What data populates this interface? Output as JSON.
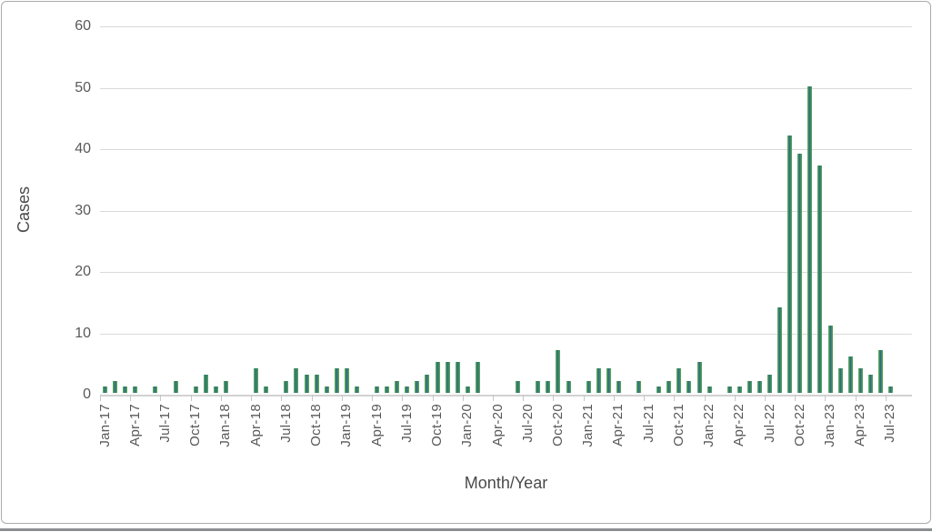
{
  "chart_data": {
    "type": "bar",
    "title": "",
    "xlabel": "Month/Year",
    "ylabel": "Cases",
    "ylim": [
      0,
      60
    ],
    "y_ticks": [
      0,
      10,
      20,
      30,
      40,
      50,
      60
    ],
    "grid": true,
    "x_tick_labels": [
      "Jan-17",
      "Apr-17",
      "Jul-17",
      "Oct-17",
      "Jan-18",
      "Apr-18",
      "Jul-18",
      "Oct-18",
      "Jan-19",
      "Apr-19",
      "Jul-19",
      "Oct-19",
      "Jan-20",
      "Apr-20",
      "Jul-20",
      "Oct-20",
      "Jan-21",
      "Apr-21",
      "Jul-21",
      "Oct-21",
      "Jan-22",
      "Apr-22",
      "Jul-22",
      "Oct-22",
      "Jan-23",
      "Apr-23",
      "Jul-23"
    ],
    "label_interval_months": 3,
    "months": [
      "Jan-17",
      "Feb-17",
      "Mar-17",
      "Apr-17",
      "May-17",
      "Jun-17",
      "Jul-17",
      "Aug-17",
      "Sep-17",
      "Oct-17",
      "Nov-17",
      "Dec-17",
      "Jan-18",
      "Feb-18",
      "Mar-18",
      "Apr-18",
      "May-18",
      "Jun-18",
      "Jul-18",
      "Aug-18",
      "Sep-18",
      "Oct-18",
      "Nov-18",
      "Dec-18",
      "Jan-19",
      "Feb-19",
      "Mar-19",
      "Apr-19",
      "May-19",
      "Jun-19",
      "Jul-19",
      "Aug-19",
      "Sep-19",
      "Oct-19",
      "Nov-19",
      "Dec-19",
      "Jan-20",
      "Feb-20",
      "Mar-20",
      "Apr-20",
      "May-20",
      "Jun-20",
      "Jul-20",
      "Aug-20",
      "Sep-20",
      "Oct-20",
      "Nov-20",
      "Dec-20",
      "Jan-21",
      "Feb-21",
      "Mar-21",
      "Apr-21",
      "May-21",
      "Jun-21",
      "Jul-21",
      "Aug-21",
      "Sep-21",
      "Oct-21",
      "Nov-21",
      "Dec-21",
      "Jan-22",
      "Feb-22",
      "Mar-22",
      "Apr-22",
      "May-22",
      "Jun-22",
      "Jul-22",
      "Aug-22",
      "Sep-22",
      "Oct-22",
      "Nov-22",
      "Dec-22",
      "Jan-23",
      "Feb-23",
      "Mar-23",
      "Apr-23",
      "May-23",
      "Jun-23",
      "Jul-23"
    ],
    "values": [
      1,
      2,
      1,
      1,
      0,
      1,
      0,
      2,
      0,
      1,
      3,
      1,
      2,
      0,
      0,
      4,
      1,
      0,
      2,
      4,
      3,
      3,
      1,
      4,
      4,
      1,
      0,
      1,
      1,
      2,
      1,
      2,
      3,
      5,
      5,
      5,
      1,
      5,
      0,
      0,
      0,
      2,
      0,
      2,
      2,
      7,
      2,
      0,
      2,
      4,
      4,
      2,
      0,
      2,
      0,
      1,
      2,
      4,
      2,
      5,
      1,
      0,
      1,
      1,
      2,
      2,
      3,
      14,
      42,
      39,
      50,
      37,
      11,
      4,
      6,
      4,
      3,
      7,
      1
    ],
    "colors": {
      "bar_edge_green": "#55a25d",
      "bar_center_teal": "#2f6e7c",
      "gridline": "#d9d9d9",
      "axis_line": "#d2d2d2",
      "tick_text": "#595959",
      "axis_title_text": "#4a4a4a",
      "frame_border": "#ababab",
      "bottom_edge": "#8c8f92"
    },
    "legend": null
  }
}
